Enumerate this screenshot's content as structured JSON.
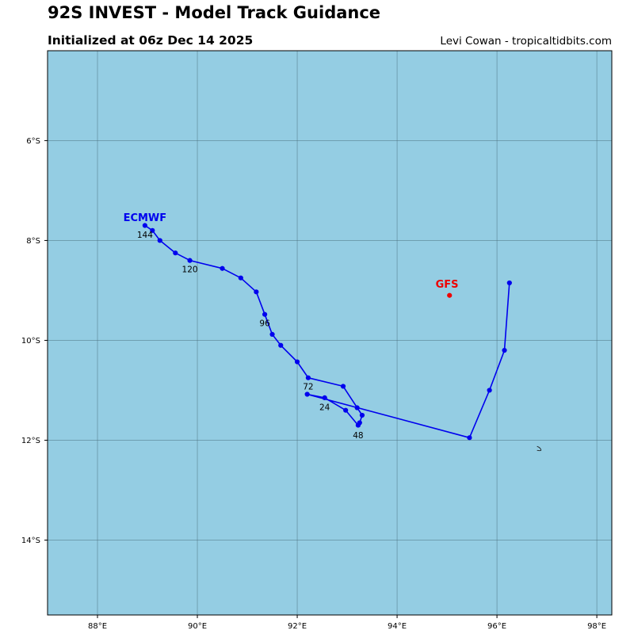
{
  "header": {
    "title": "92S INVEST - Model Track Guidance",
    "subtitle": "Initialized at 06z Dec 14 2025",
    "credit": "Levi Cowan - tropicaltidbits.com"
  },
  "map": {
    "ocean_color": "#94CDE3",
    "grid_color": "#4a6f7d",
    "lon_range": [
      87.0,
      98.3
    ],
    "lat_range": [
      -15.5,
      -4.2
    ],
    "lon_ticks": [
      {
        "lon": 88,
        "label": "88°E"
      },
      {
        "lon": 90,
        "label": "90°E"
      },
      {
        "lon": 92,
        "label": "92°E"
      },
      {
        "lon": 94,
        "label": "94°E"
      },
      {
        "lon": 96,
        "label": "96°E"
      },
      {
        "lon": 98,
        "label": "98°E"
      }
    ],
    "lat_ticks": [
      {
        "lat": -6,
        "label": "6°S"
      },
      {
        "lat": -8,
        "label": "8°S"
      },
      {
        "lat": -10,
        "label": "10°S"
      },
      {
        "lat": -12,
        "label": "12°S"
      },
      {
        "lat": -14,
        "label": "14°S"
      }
    ],
    "island": {
      "lon": 96.85,
      "lat": -12.17
    }
  },
  "chart_data": {
    "type": "map-track",
    "models": [
      {
        "name": "ECMWF",
        "color": "#0000ee",
        "label_at": {
          "lon": 88.95,
          "lat": -7.55
        },
        "track": [
          [
            96.25,
            -8.85
          ],
          [
            96.15,
            -10.2
          ],
          [
            95.85,
            -11.0
          ],
          [
            95.45,
            -11.95
          ],
          [
            92.2,
            -11.08
          ],
          [
            92.55,
            -11.15
          ],
          [
            92.97,
            -11.4
          ],
          [
            93.22,
            -11.7
          ],
          [
            93.25,
            -11.65
          ],
          [
            93.3,
            -11.5
          ],
          [
            93.2,
            -11.35
          ],
          [
            92.92,
            -10.92
          ],
          [
            92.22,
            -10.75
          ],
          [
            92.0,
            -10.43
          ],
          [
            91.67,
            -10.1
          ],
          [
            91.5,
            -9.88
          ],
          [
            91.35,
            -9.48
          ],
          [
            91.18,
            -9.03
          ],
          [
            90.87,
            -8.75
          ],
          [
            90.5,
            -8.56
          ],
          [
            89.85,
            -8.4
          ],
          [
            89.56,
            -8.25
          ],
          [
            89.25,
            -8.0
          ],
          [
            89.1,
            -7.8
          ],
          [
            88.95,
            -7.7
          ]
        ],
        "hour_labels": [
          {
            "text": "24",
            "lon": 92.55,
            "lat": -11.33
          },
          {
            "text": "48",
            "lon": 93.22,
            "lat": -11.9
          },
          {
            "text": "72",
            "lon": 92.22,
            "lat": -10.92
          },
          {
            "text": "96",
            "lon": 91.35,
            "lat": -9.65
          },
          {
            "text": "120",
            "lon": 89.85,
            "lat": -8.57
          },
          {
            "text": "144",
            "lon": 88.95,
            "lat": -7.88
          }
        ]
      },
      {
        "name": "GFS",
        "color": "#ee0000",
        "label_at": {
          "lon": 95.0,
          "lat": -8.88
        },
        "track": [
          [
            95.05,
            -9.1
          ]
        ],
        "hour_labels": []
      }
    ]
  }
}
